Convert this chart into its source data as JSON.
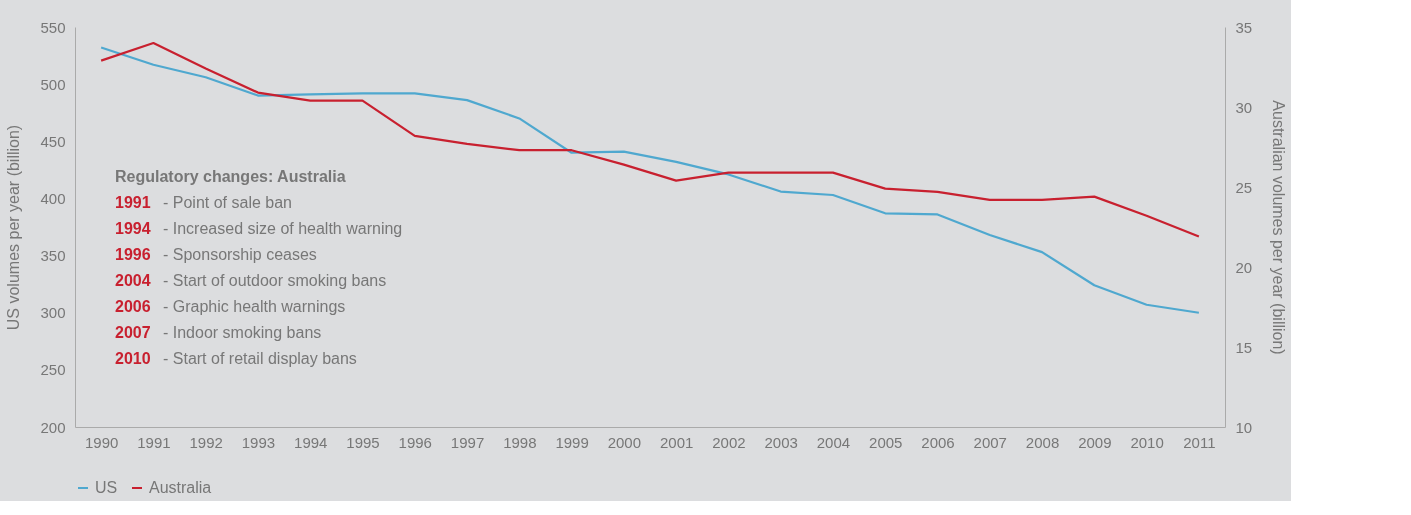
{
  "chart_data": {
    "type": "line",
    "xlabel": null,
    "ylabel": "US volumes per year (billion)",
    "y2label": "Australian volumes per year (billion)",
    "categories": [
      "1990",
      "1991",
      "1992",
      "1993",
      "1994",
      "1995",
      "1996",
      "1997",
      "1998",
      "1999",
      "2000",
      "2001",
      "2002",
      "2003",
      "2004",
      "2005",
      "2006",
      "2007",
      "2008",
      "2009",
      "2010",
      "2011"
    ],
    "series": [
      {
        "name": "US",
        "color": "#4fa8cf",
        "values": [
          532,
          517,
          506,
          490,
          491,
          492,
          492,
          486,
          470,
          440,
          441,
          432,
          421,
          406,
          403,
          387,
          386,
          368,
          353,
          324,
          307,
          300
        ]
      },
      {
        "name": "Australia",
        "color": "#c8202f",
        "axis": "y2",
        "values": [
          32.9,
          34.0,
          32.4,
          30.9,
          30.4,
          30.4,
          28.2,
          27.7,
          27.3,
          27.3,
          26.4,
          25.4,
          25.9,
          25.9,
          25.9,
          24.9,
          24.7,
          24.2,
          24.2,
          24.4,
          23.2,
          21.9
        ]
      }
    ],
    "ylim": [
      200,
      550
    ],
    "yticks": [
      200,
      250,
      300,
      350,
      400,
      450,
      500,
      550
    ],
    "y2lim": [
      10,
      35
    ],
    "y2ticks": [
      10,
      15,
      20,
      25,
      30,
      35
    ],
    "legend": "bottom",
    "marker": "none",
    "line_style": "solid",
    "annotations": [
      "Regulatory changes: Australia",
      "1991 - Point of sale ban",
      "1994 - Increased size of health warning",
      "1996 - Sponsorship ceases",
      "2004 - Start of outdoor smoking bans",
      "2006 - Graphic health warnings",
      "2007 - Indoor smoking bans",
      "2010 - Start of retail display bans"
    ]
  }
}
